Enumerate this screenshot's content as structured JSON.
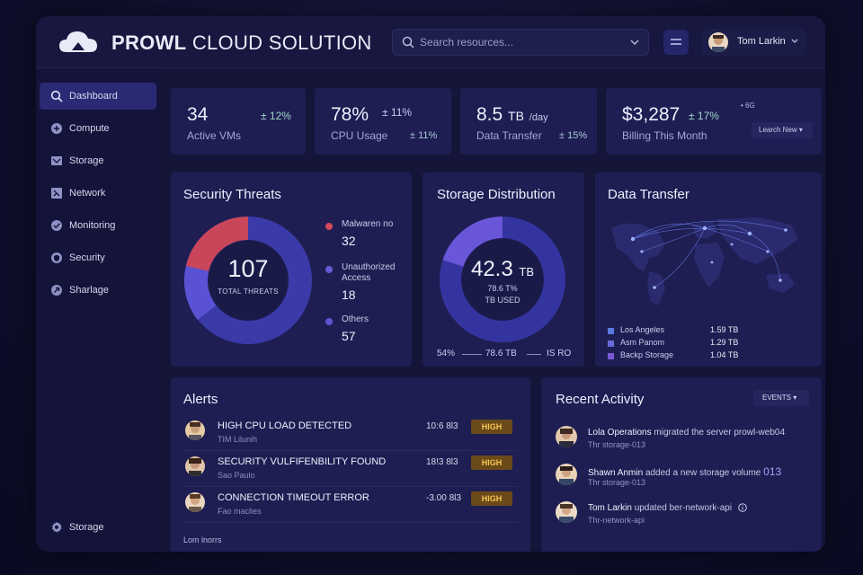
{
  "header": {
    "brand_bold": "PROWL",
    "brand_rest": "CLOUD SOLUTION",
    "search_placeholder": "Search resources...",
    "user_name": "Tom Larkin"
  },
  "sidebar": {
    "items": [
      {
        "label": "Dashboard"
      },
      {
        "label": "Compute"
      },
      {
        "label": "Storage"
      },
      {
        "label": "Network"
      },
      {
        "label": "Monitoring"
      },
      {
        "label": "Security"
      },
      {
        "label": "Sharlage"
      }
    ],
    "bottom_item": {
      "label": "Storage"
    }
  },
  "stats": [
    {
      "value": "34",
      "delta": "± 12%",
      "label": "Active VMs"
    },
    {
      "value": "78%",
      "delta": "± 11%",
      "label": "CPU Usage",
      "delta2": "± 11%"
    },
    {
      "value": "8.5",
      "unit": "TB",
      "per": "/day",
      "label": "Data Transfer",
      "delta2": "± 15%"
    },
    {
      "value": "$3,287",
      "delta": "± 17%",
      "label": "Billing This Month",
      "tiny": "• 6G",
      "button": "Learch New"
    }
  ],
  "security": {
    "title": "Security Threats",
    "total": "107",
    "total_label": "TOTAL THREATS",
    "legend": [
      {
        "label": "Malwaren no",
        "value": "32",
        "color": "#d24a5c"
      },
      {
        "label": "Unauthorized\nAccess",
        "value": "18",
        "color": "#6a5ad6"
      },
      {
        "label": "Others",
        "value": "57",
        "color": "#5c55d0"
      }
    ]
  },
  "storage": {
    "title": "Storage Distribution",
    "total": "42.3",
    "total_unit": "TB",
    "used_value": "78.6 T%",
    "used_label": "TB USED",
    "footer_pct": "54%",
    "footer_mid": "78.6 TB",
    "footer_right": "IS RO"
  },
  "transfer": {
    "title": "Data Transfer",
    "rows": [
      {
        "label": "Los Angeles",
        "value": "1.59 TB",
        "color": "#5b7be0"
      },
      {
        "label": "Asm Panom",
        "value": "1.29 TB",
        "color": "#6a6ad8"
      },
      {
        "label": "Backp Storage",
        "value": "1.04 TB",
        "color": "#7a5ad6"
      }
    ]
  },
  "alerts": {
    "title": "Alerts",
    "items": [
      {
        "title": "HIGH CPU LOAD DETECTED",
        "sub": "TIM Lilunih",
        "time": "10:6 8l3",
        "level": "HIGH"
      },
      {
        "title": "SECURITY VULFIFENBILITY FOUND",
        "sub": "Sao Paulo",
        "time": "18!3 8l3",
        "level": "HIGH"
      },
      {
        "title": "CONNECTION TIMEOUT ERROR",
        "sub": "Fao maclies",
        "time": "-3.00 8l3",
        "level": "HIGH"
      }
    ],
    "footer": "Lom lnorrs"
  },
  "activity": {
    "title": "Recent Activity",
    "filter": "EVENTS",
    "items": [
      {
        "name": "Lola Operations",
        "action": "migrated the server prowl-web04",
        "sub": "Thr storage-013"
      },
      {
        "name": "Shawn Anmin",
        "action": "added a new storage volume",
        "extra": "013",
        "sub": "Thr storage-013"
      },
      {
        "name": "Tom Larkin",
        "action": "updated ber-network-api",
        "sub": "Thr-network-api"
      }
    ]
  },
  "colors": {
    "accent": "#2a2a74",
    "card": "#1e1e52",
    "high_badge": "#6a4a18",
    "high_text": "#f4c451"
  }
}
